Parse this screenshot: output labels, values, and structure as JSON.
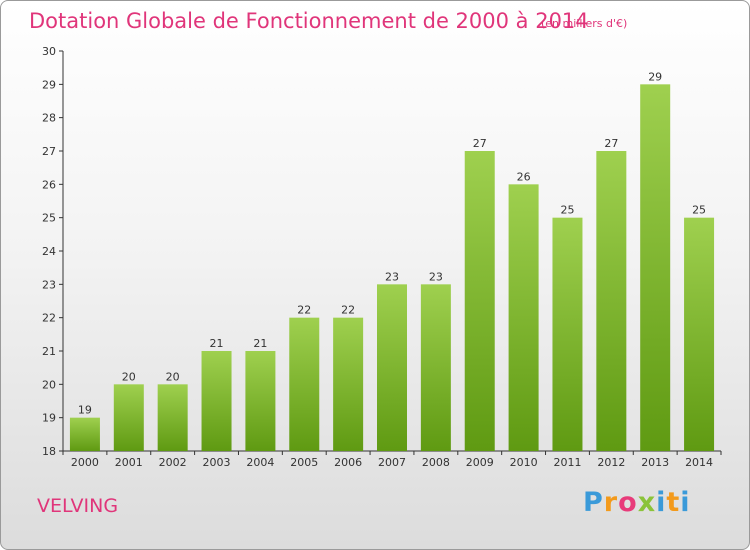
{
  "header": {
    "title": "Dotation Globale de Fonctionnement de 2000 à 2014",
    "subtitle": "(en milliers d'€)"
  },
  "footer": {
    "city": "VELVING",
    "logo": "Proxiti"
  },
  "colors": {
    "title": "#e0357a",
    "bar_light": "#9fd04f",
    "bar_dark": "#5f9a12",
    "axis": "#333333"
  },
  "chart_data": {
    "type": "bar",
    "title": "Dotation Globale de Fonctionnement de 2000 à 2014",
    "subtitle": "(en milliers d'€)",
    "categories": [
      "2000",
      "2001",
      "2002",
      "2003",
      "2004",
      "2005",
      "2006",
      "2007",
      "2008",
      "2009",
      "2010",
      "2011",
      "2012",
      "2013",
      "2014"
    ],
    "values": [
      19,
      20,
      20,
      21,
      21,
      22,
      22,
      23,
      23,
      27,
      26,
      25,
      27,
      29,
      25
    ],
    "ylim": [
      18,
      30
    ],
    "yticks": [
      18,
      19,
      20,
      21,
      22,
      23,
      24,
      25,
      26,
      27,
      28,
      29,
      30
    ],
    "xlabel": "",
    "ylabel": "",
    "grid": false,
    "legend": "none"
  }
}
